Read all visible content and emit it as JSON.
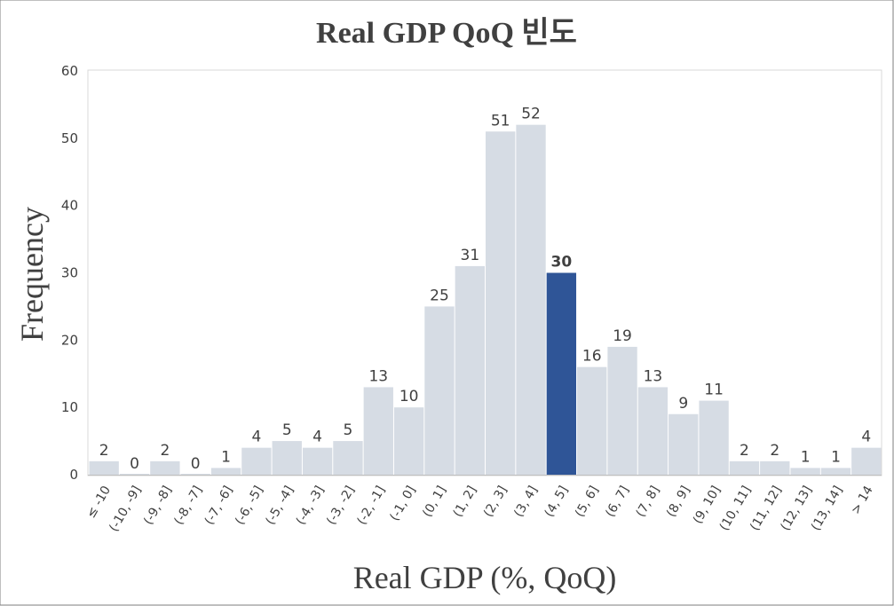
{
  "chart_data": {
    "type": "bar",
    "title": "Real GDP QoQ 빈도",
    "xlabel": "Real GDP (%, QoQ)",
    "ylabel": "Frequency",
    "ylim": [
      0,
      60
    ],
    "yticks": [
      0,
      10,
      20,
      30,
      40,
      50,
      60
    ],
    "grid": false,
    "highlight_category": "(4, 5]",
    "colors": {
      "bar": "#d6dce4",
      "highlight": "#2f5597",
      "text": "#404040",
      "frame": "#d9d9d9",
      "axis": "#bfbfbf"
    },
    "categories": [
      "≤ -10",
      "(-10, -9]",
      "(-9, -8]",
      "(-8, -7]",
      "(-7, -6]",
      "(-6, -5]",
      "(-5, -4]",
      "(-4, -3]",
      "(-3, -2]",
      "(-2, -1]",
      "(-1, 0]",
      "(0, 1]",
      "(1, 2]",
      "(2, 3]",
      "(3, 4]",
      "(4, 5]",
      "(5, 6]",
      "(6, 7]",
      "(7, 8]",
      "(8, 9]",
      "(9, 10]",
      "(10, 11]",
      "(11, 12]",
      "(12, 13]",
      "(13, 14]",
      "> 14"
    ],
    "values": [
      2,
      0,
      2,
      0,
      1,
      4,
      5,
      4,
      5,
      13,
      10,
      25,
      31,
      51,
      52,
      30,
      16,
      19,
      13,
      9,
      11,
      2,
      2,
      1,
      1,
      4
    ]
  }
}
